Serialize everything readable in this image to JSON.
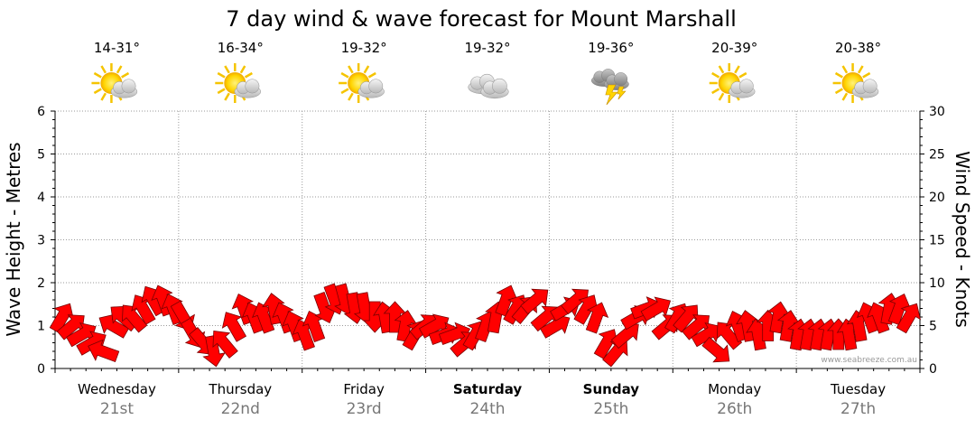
{
  "chart_data": {
    "type": "line",
    "title": "7 day wind & wave forecast for Mount Marshall",
    "ylabel_left": "Wave Height - Metres",
    "ylabel_right": "Wind Speed - Knots",
    "y_left_range": [
      0,
      6
    ],
    "y_left_ticks": [
      "0",
      "1",
      "2",
      "3",
      "4",
      "5",
      "6"
    ],
    "y_right_range": [
      0,
      30
    ],
    "y_right_ticks": [
      "0",
      "5",
      "10",
      "15",
      "20",
      "25",
      "30"
    ],
    "grid": true,
    "credit": "www.seabreeze.com.au",
    "days": [
      {
        "name": "Wednesday",
        "date": "21st",
        "temp": "14-31°",
        "icon": "sun-cloud-icon",
        "bold": false
      },
      {
        "name": "Thursday",
        "date": "22nd",
        "temp": "16-34°",
        "icon": "sun-cloud-icon",
        "bold": false
      },
      {
        "name": "Friday",
        "date": "23rd",
        "temp": "19-32°",
        "icon": "sun-cloud-icon",
        "bold": false
      },
      {
        "name": "Saturday",
        "date": "24th",
        "temp": "19-32°",
        "icon": "cloud-icon",
        "bold": true
      },
      {
        "name": "Sunday",
        "date": "25th",
        "temp": "19-36°",
        "icon": "storm-icon",
        "bold": true
      },
      {
        "name": "Monday",
        "date": "26th",
        "temp": "20-39°",
        "icon": "sun-cloud-icon",
        "bold": false
      },
      {
        "name": "Tuesday",
        "date": "27th",
        "temp": "20-38°",
        "icon": "sun-cloud-icon",
        "bold": false
      }
    ],
    "wind_knots": [
      6,
      5,
      4,
      3,
      2,
      5,
      6,
      6,
      7,
      8,
      8,
      7,
      6,
      4,
      3,
      2,
      3,
      5,
      7,
      6,
      6,
      7,
      6,
      5,
      4,
      5,
      7,
      8,
      8,
      7,
      7,
      6,
      6,
      6,
      5,
      4,
      5,
      5,
      4,
      4,
      3,
      4,
      5,
      6,
      8,
      7,
      7,
      8,
      6,
      5,
      7,
      8,
      7,
      6,
      3,
      2,
      4,
      6,
      7,
      7,
      5,
      6,
      6,
      5,
      4,
      2,
      4,
      5,
      5,
      4,
      5,
      6,
      5,
      4,
      4,
      4,
      4,
      4,
      4,
      5,
      6,
      6,
      7,
      7,
      6
    ],
    "wind_dir_deg": [
      300,
      320,
      330,
      330,
      200,
      210,
      220,
      230,
      240,
      240,
      250,
      250,
      60,
      60,
      50,
      80,
      230,
      240,
      250,
      250,
      250,
      260,
      250,
      250,
      250,
      250,
      70,
      70,
      75,
      80,
      80,
      90,
      260,
      270,
      280,
      300,
      320,
      330,
      340,
      340,
      320,
      300,
      290,
      280,
      290,
      300,
      310,
      320,
      320,
      330,
      330,
      320,
      300,
      290,
      300,
      310,
      320,
      330,
      340,
      330,
      320,
      300,
      310,
      320,
      330,
      40,
      230,
      250,
      260,
      260,
      270,
      280,
      280,
      280,
      280,
      280,
      280,
      270,
      260,
      260,
      250,
      250,
      280,
      290,
      300
    ]
  }
}
